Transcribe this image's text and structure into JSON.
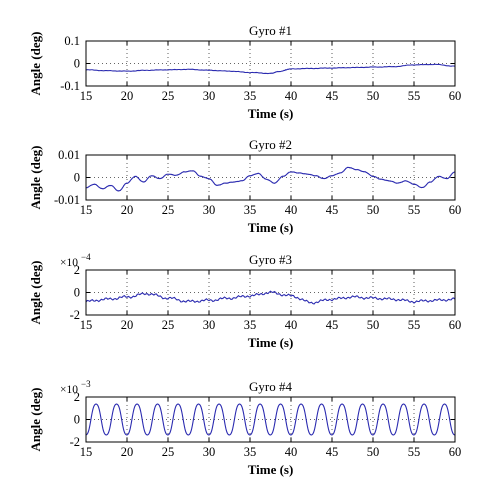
{
  "chart_data": [
    {
      "type": "line",
      "title": "Gyro #1",
      "xlabel": "Time (s)",
      "ylabel": "Angle (deg)",
      "xlim": [
        15,
        60
      ],
      "ylim": [
        -0.1,
        0.1
      ],
      "xticks": [
        "15",
        "20",
        "25",
        "30",
        "35",
        "40",
        "45",
        "50",
        "55",
        "60"
      ],
      "yticks": [
        "-0.1",
        "0",
        "0.1"
      ],
      "exponent": "",
      "grid": "dotted",
      "series": [
        {
          "color": "#2b2bb0",
          "x": [
            15,
            17.5,
            20,
            22.5,
            25,
            27.5,
            30,
            32.5,
            35,
            37.5,
            38.5,
            40,
            42.5,
            45,
            47.5,
            50,
            52.5,
            55,
            57.5,
            60
          ],
          "y": [
            -0.028,
            -0.032,
            -0.034,
            -0.03,
            -0.028,
            -0.026,
            -0.03,
            -0.034,
            -0.04,
            -0.044,
            -0.036,
            -0.024,
            -0.022,
            -0.02,
            -0.018,
            -0.016,
            -0.014,
            -0.006,
            -0.004,
            -0.012
          ]
        }
      ]
    },
    {
      "type": "line",
      "title": "Gyro #2",
      "xlabel": "Time (s)",
      "ylabel": "Angle (deg)",
      "xlim": [
        15,
        60
      ],
      "ylim": [
        -0.01,
        0.01
      ],
      "xticks": [
        "15",
        "20",
        "25",
        "30",
        "35",
        "40",
        "45",
        "50",
        "55",
        "60"
      ],
      "yticks": [
        "-0.01",
        "0",
        "0.01"
      ],
      "exponent": "",
      "grid": "dotted",
      "series": [
        {
          "color": "#2b2bb0",
          "x": [
            15,
            16,
            17,
            18,
            19,
            20,
            21,
            22,
            23,
            24,
            25,
            26,
            27,
            28,
            29,
            30,
            31,
            32,
            33,
            34,
            35,
            36,
            37,
            38,
            39,
            40,
            41,
            42,
            43,
            44,
            45,
            46,
            47,
            48,
            49,
            50,
            51,
            52,
            53,
            54,
            55,
            56,
            57,
            58,
            59,
            60
          ],
          "y": [
            -0.0045,
            -0.003,
            -0.005,
            -0.0035,
            -0.006,
            -0.0025,
            0.0005,
            -0.002,
            0.0008,
            -0.0005,
            0.0015,
            0.001,
            0.0025,
            0.003,
            0.0005,
            -0.0005,
            -0.0035,
            -0.0025,
            -0.002,
            -0.0015,
            0.0008,
            0.0018,
            -0.0008,
            -0.0025,
            0.0005,
            0.0025,
            0.002,
            0.0015,
            0.0008,
            -0.0005,
            0.0008,
            0.002,
            0.0045,
            0.0035,
            0.0025,
            0.0005,
            -0.0008,
            -0.0015,
            -0.0025,
            -0.0015,
            -0.003,
            -0.0045,
            -0.002,
            0.0005,
            -0.0005,
            0.0025
          ]
        }
      ]
    },
    {
      "type": "line",
      "title": "Gyro #3",
      "xlabel": "Time (s)",
      "ylabel": "Angle (deg)",
      "xlim": [
        15,
        60
      ],
      "ylim": [
        -2,
        2
      ],
      "xticks": [
        "15",
        "20",
        "25",
        "30",
        "35",
        "40",
        "45",
        "50",
        "55",
        "60"
      ],
      "yticks": [
        "-2",
        "0",
        "2"
      ],
      "exponent": "−4",
      "grid": "dotted",
      "series": [
        {
          "color": "#2b2bb0",
          "x": [
            15,
            17.5,
            20,
            22.5,
            25,
            27.5,
            30,
            32.5,
            35,
            37.5,
            40,
            42.5,
            45,
            47.5,
            50,
            52.5,
            55,
            57.5,
            60
          ],
          "y": [
            -0.8,
            -0.6,
            -0.4,
            -0.1,
            -0.5,
            -0.8,
            -0.7,
            -0.5,
            -0.3,
            0.0,
            -0.3,
            -0.9,
            -0.6,
            -0.4,
            -0.5,
            -0.6,
            -0.8,
            -0.7,
            -0.6
          ]
        }
      ]
    },
    {
      "type": "line",
      "title": "Gyro #4",
      "xlabel": "Time (s)",
      "ylabel": "Angle (deg)",
      "xlim": [
        15,
        60
      ],
      "ylim": [
        -2,
        2
      ],
      "xticks": [
        "15",
        "20",
        "25",
        "30",
        "35",
        "40",
        "45",
        "50",
        "55",
        "60"
      ],
      "yticks": [
        "-2",
        "0",
        "2"
      ],
      "exponent": "−3",
      "grid": "dotted",
      "series": [
        {
          "color": "#2b2bb0",
          "amplitude": 1.45,
          "period_s": 2.5,
          "phase_s": 15.6
        }
      ]
    }
  ]
}
